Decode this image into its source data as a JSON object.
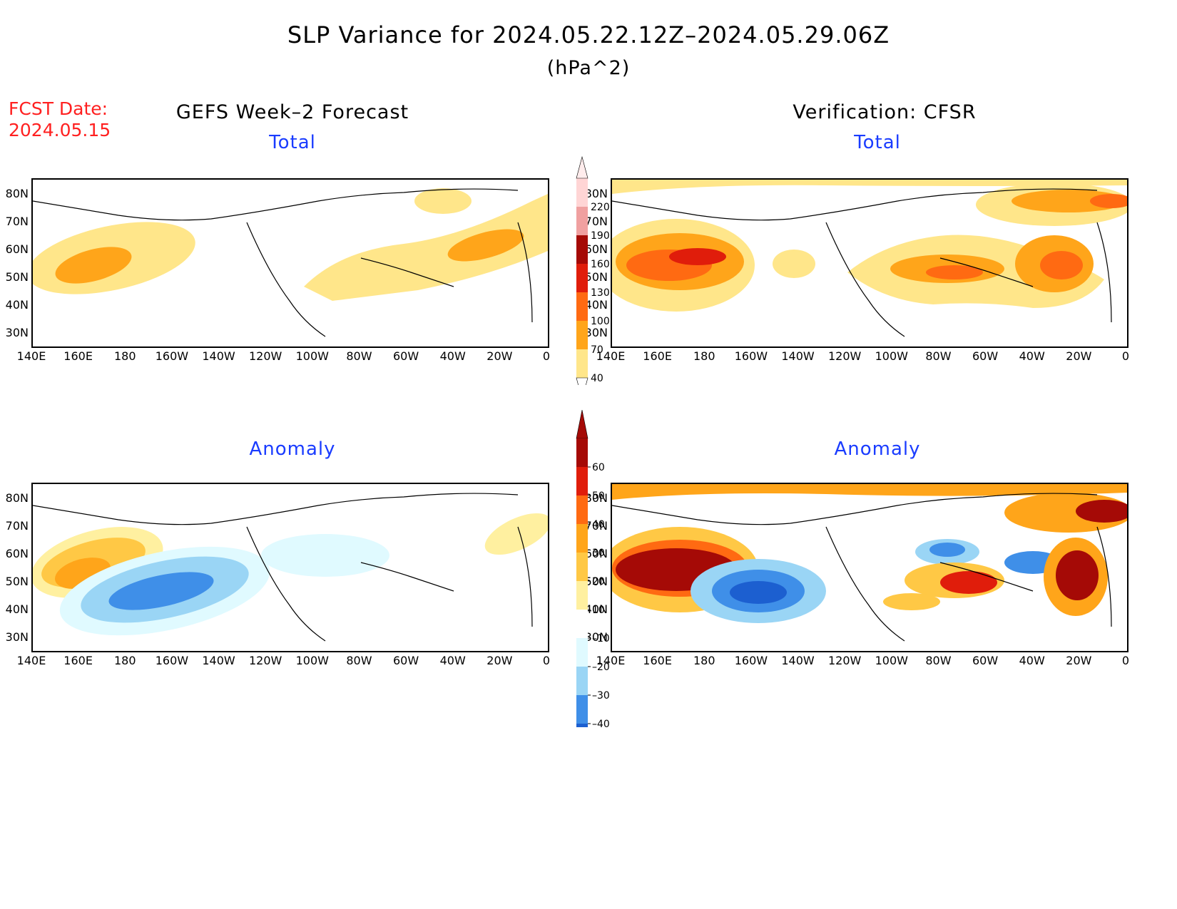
{
  "title": "SLP Variance for 2024.05.22.12Z–2024.05.29.06Z",
  "units": "(hPa^2)",
  "fcst_date": {
    "label": "FCST Date:",
    "value": "2024.05.15"
  },
  "columns": {
    "left": "GEFS Week–2 Forecast",
    "right": "Verification: CFSR"
  },
  "subtitles": {
    "total": "Total",
    "anomaly": "Anomaly"
  },
  "axes": {
    "lat_labels": [
      "80N",
      "70N",
      "60N",
      "50N",
      "40N",
      "30N"
    ],
    "lon_labels": [
      "140E",
      "160E",
      "180",
      "160W",
      "140W",
      "120W",
      "100W",
      "80W",
      "60W",
      "40W",
      "20W",
      "0"
    ]
  },
  "colorbars": {
    "total": {
      "levels": [
        "40",
        "70",
        "100",
        "130",
        "160",
        "190",
        "220"
      ],
      "colors": [
        "#ffe68a",
        "#ffa51a",
        "#ff6a12",
        "#e01d0b",
        "#a50a06",
        "#f0a0a0",
        "#ffd5d5"
      ]
    },
    "anomaly": {
      "levels": [
        "60",
        "50",
        "40",
        "30",
        "20",
        "10",
        "–10",
        "–20",
        "–30",
        "–40"
      ],
      "colors_pos": [
        "#a50a06",
        "#e01d0b",
        "#ff6a12",
        "#ffa51a",
        "#ffc845",
        "#fff0a0"
      ],
      "colors_neg": [
        "#e0faff",
        "#9ad5f5",
        "#3f8fe8",
        "#1c5fd0"
      ]
    }
  }
}
